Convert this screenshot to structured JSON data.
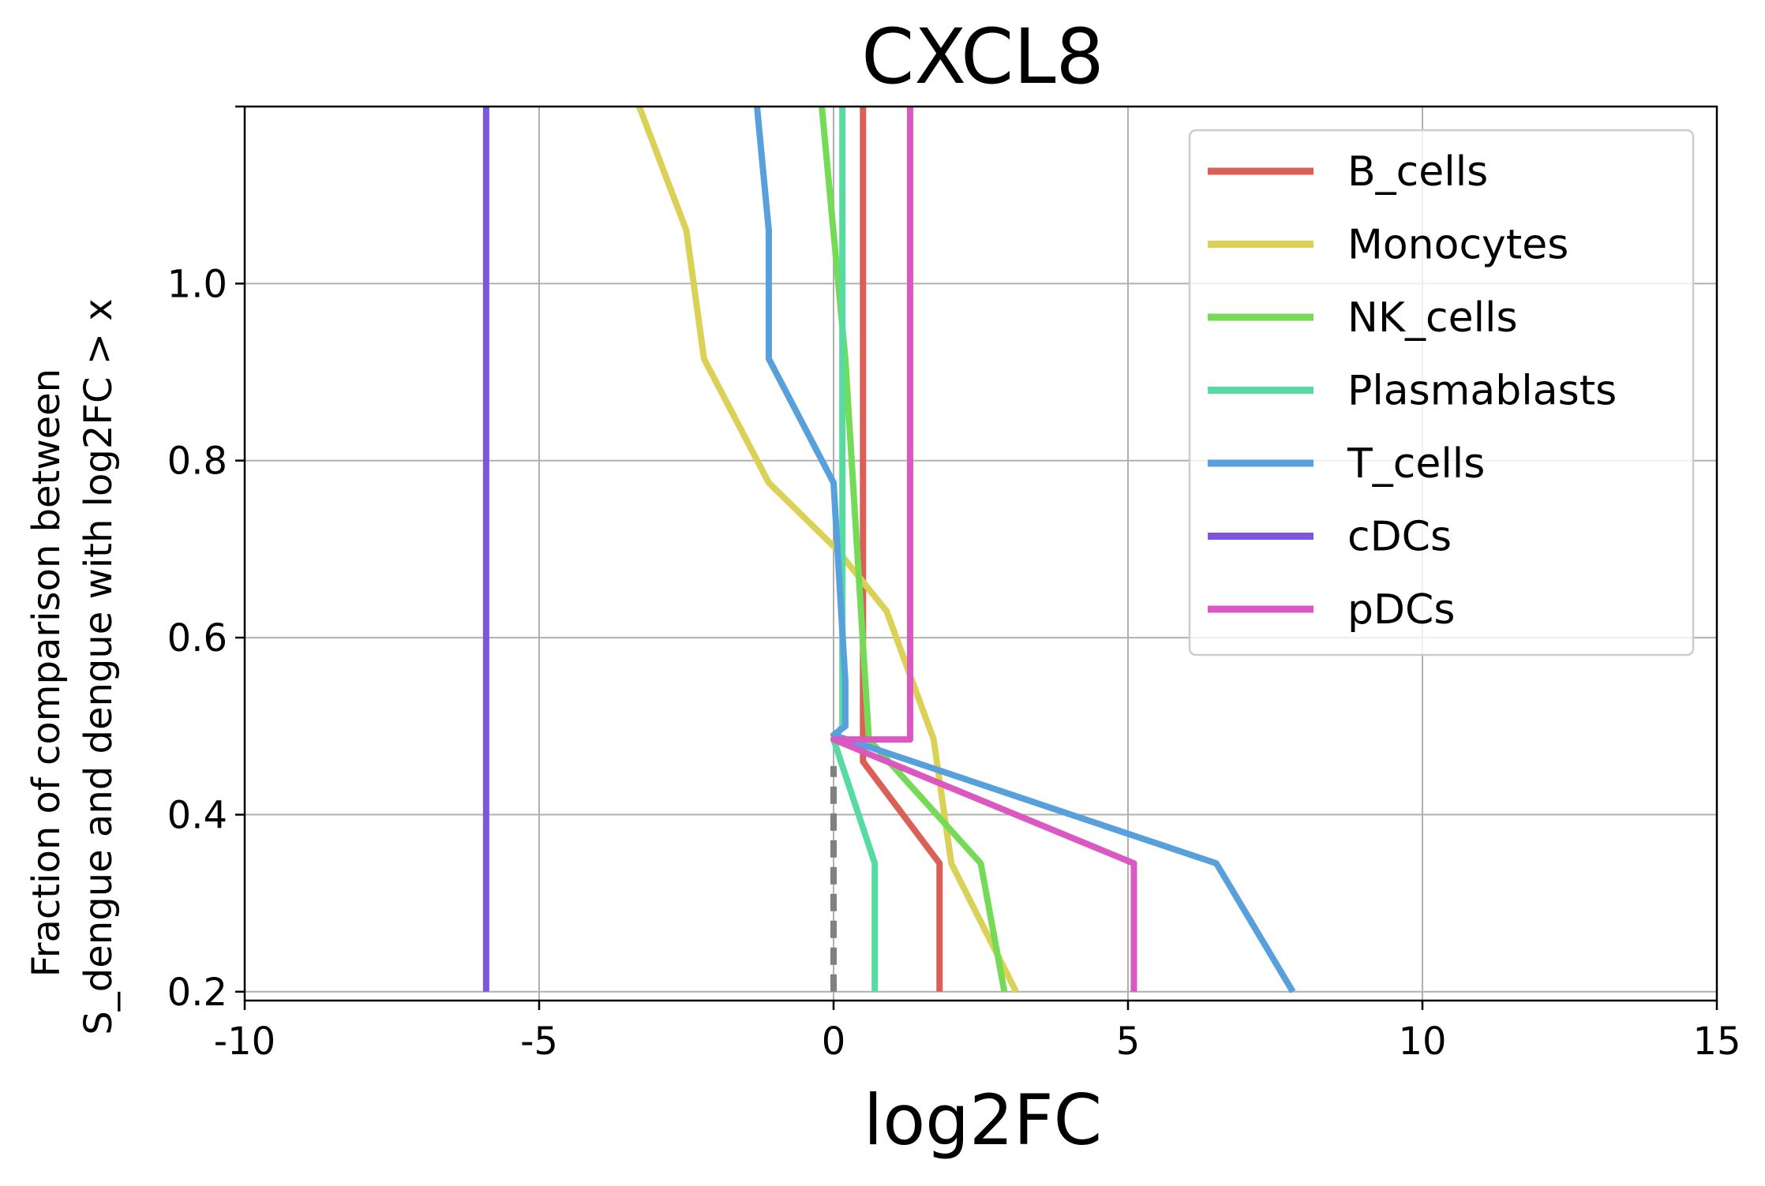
{
  "chart_data": {
    "type": "line",
    "title": "CXCL8",
    "xlabel": "log2FC",
    "ylabel_lines": [
      "Fraction of comparison between",
      "S_dengue and dengue with log2FC > x"
    ],
    "xlim": [
      -10,
      15
    ],
    "ylim": [
      0.19,
      1.2
    ],
    "xticks": [
      -10,
      -5,
      0,
      5,
      10,
      15
    ],
    "xtick_labels": [
      "-10",
      "-5",
      "0",
      "5",
      "10",
      "15"
    ],
    "yticks": [
      0.2,
      0.4,
      0.6,
      0.8,
      1.0
    ],
    "ytick_labels": [
      "0.2",
      "0.4",
      "0.6",
      "0.8",
      "1.0"
    ],
    "grid": true,
    "legend_position": "top-right",
    "reference_line": {
      "style": "dashed",
      "color": "#808080",
      "points": [
        [
          0,
          0.2
        ],
        [
          0,
          0.455
        ]
      ]
    },
    "series": [
      {
        "name": "B_cells",
        "color": "#db5f57",
        "points": [
          [
            1.8,
            0.2
          ],
          [
            1.8,
            0.345
          ],
          [
            0.5,
            0.46
          ],
          [
            0.5,
            1.2
          ]
        ]
      },
      {
        "name": "Monocytes",
        "color": "#dbd157",
        "points": [
          [
            3.1,
            0.2
          ],
          [
            2.0,
            0.345
          ],
          [
            1.7,
            0.485
          ],
          [
            0.9,
            0.63
          ],
          [
            0.05,
            0.7
          ],
          [
            -1.1,
            0.775
          ],
          [
            -2.2,
            0.915
          ],
          [
            -2.5,
            1.06
          ],
          [
            -3.3,
            1.2
          ]
        ]
      },
      {
        "name": "NK_cells",
        "color": "#75db57",
        "points": [
          [
            2.9,
            0.2
          ],
          [
            2.5,
            0.345
          ],
          [
            0.6,
            0.485
          ],
          [
            0.2,
            0.915
          ],
          [
            -0.2,
            1.2
          ]
        ]
      },
      {
        "name": "Plasmablasts",
        "color": "#57dba0",
        "points": [
          [
            0.7,
            0.2
          ],
          [
            0.7,
            0.345
          ],
          [
            0.0,
            0.485
          ],
          [
            0.15,
            0.5
          ],
          [
            0.15,
            1.2
          ]
        ]
      },
      {
        "name": "T_cells",
        "color": "#57a0db",
        "points": [
          [
            7.8,
            0.2
          ],
          [
            6.5,
            0.345
          ],
          [
            0.0,
            0.49
          ],
          [
            0.2,
            0.5
          ],
          [
            0.2,
            0.55
          ],
          [
            0.0,
            0.775
          ],
          [
            -1.1,
            0.915
          ],
          [
            -1.1,
            1.06
          ],
          [
            -1.3,
            1.2
          ]
        ]
      },
      {
        "name": "cDCs",
        "color": "#7d57db",
        "points": [
          [
            -5.9,
            0.2
          ],
          [
            -5.9,
            1.2
          ]
        ]
      },
      {
        "name": "pDCs",
        "color": "#db57c2",
        "points": [
          [
            5.1,
            0.2
          ],
          [
            5.1,
            0.345
          ],
          [
            0.0,
            0.485
          ],
          [
            1.3,
            0.485
          ],
          [
            1.3,
            1.2
          ]
        ]
      }
    ]
  }
}
